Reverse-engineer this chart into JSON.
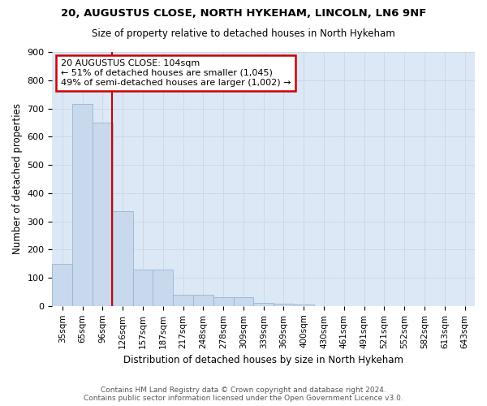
{
  "title1": "20, AUGUSTUS CLOSE, NORTH HYKEHAM, LINCOLN, LN6 9NF",
  "title2": "Size of property relative to detached houses in North Hykeham",
  "xlabel": "Distribution of detached houses by size in North Hykeham",
  "ylabel": "Number of detached properties",
  "footer1": "Contains HM Land Registry data © Crown copyright and database right 2024.",
  "footer2": "Contains public sector information licensed under the Open Government Licence v3.0.",
  "bar_labels": [
    "35sqm",
    "65sqm",
    "96sqm",
    "126sqm",
    "157sqm",
    "187sqm",
    "217sqm",
    "248sqm",
    "278sqm",
    "309sqm",
    "339sqm",
    "369sqm",
    "400sqm",
    "430sqm",
    "461sqm",
    "491sqm",
    "521sqm",
    "552sqm",
    "582sqm",
    "613sqm",
    "643sqm"
  ],
  "bar_values": [
    150,
    715,
    650,
    335,
    130,
    130,
    40,
    40,
    30,
    30,
    10,
    8,
    5,
    0,
    0,
    0,
    0,
    0,
    0,
    0,
    0
  ],
  "bar_color": "#c8d9ed",
  "bar_edge_color": "#9ab5d0",
  "annotation_line1": "20 AUGUSTUS CLOSE: 104sqm",
  "annotation_line2": "← 51% of detached houses are smaller (1,045)",
  "annotation_line3": "49% of semi-detached houses are larger (1,002) →",
  "vline_x_index": 2.47,
  "vline_color": "#cc0000",
  "annotation_box_color": "#ffffff",
  "annotation_box_edge": "#cc0000",
  "grid_color": "#cdd8e8",
  "background_color": "#dce8f5",
  "ylim": [
    0,
    900
  ],
  "yticks": [
    0,
    100,
    200,
    300,
    400,
    500,
    600,
    700,
    800,
    900
  ]
}
